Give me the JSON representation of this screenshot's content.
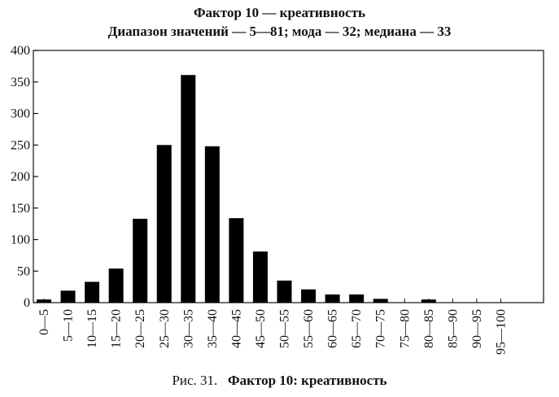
{
  "chart_data": {
    "type": "bar",
    "title": "Фактор 10 — креативность",
    "subtitle": "Диапазон значений — 5—81; мода — 32; медиана — 33",
    "categories": [
      "0—5",
      "5—10",
      "10—15",
      "15—20",
      "20—25",
      "25—30",
      "30—35",
      "35—40",
      "40—45",
      "45—50",
      "50—55",
      "55—60",
      "60—65",
      "65—70",
      "70—75",
      "75—80",
      "80—85",
      "85—90",
      "90—95",
      "95—100"
    ],
    "values": [
      5,
      19,
      33,
      54,
      133,
      250,
      361,
      248,
      134,
      81,
      35,
      21,
      13,
      13,
      6,
      0,
      5,
      0,
      0,
      0
    ],
    "ylim": [
      0,
      400
    ],
    "yticks": [
      0,
      50,
      100,
      150,
      200,
      250,
      300,
      350,
      400
    ],
    "bar_color": "#000000",
    "grid": false
  },
  "caption": {
    "figure_label": "Рис. 31.",
    "text": "Фактор 10:  креативность"
  }
}
